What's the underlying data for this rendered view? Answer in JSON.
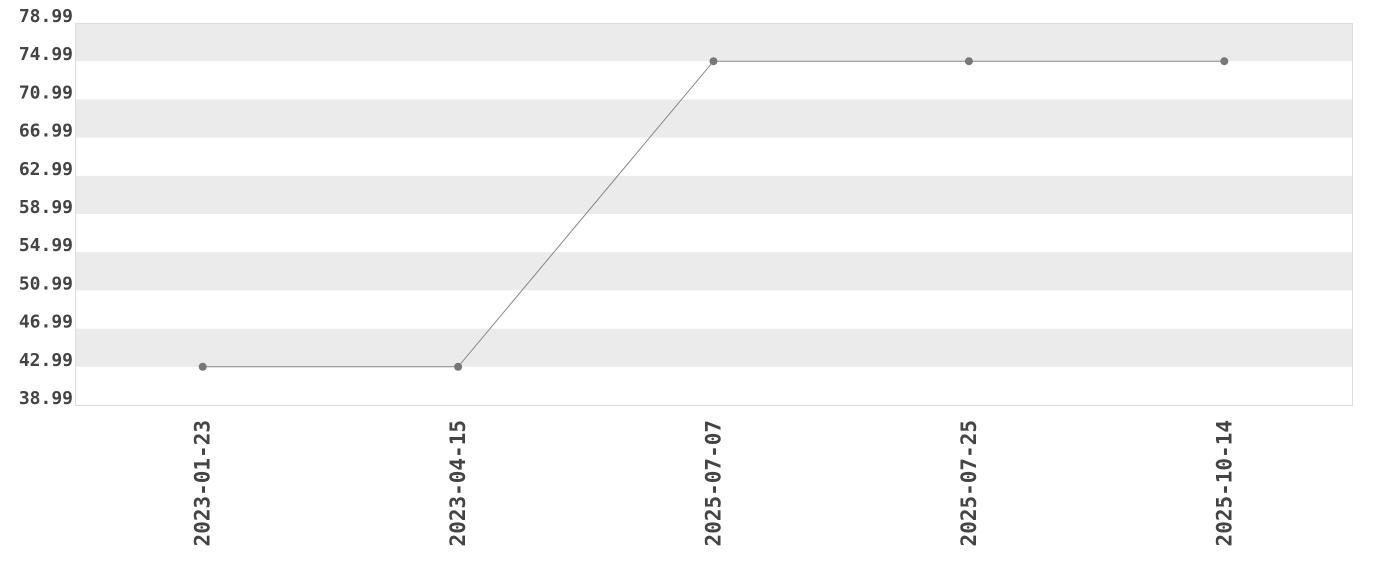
{
  "chart_data": {
    "type": "line",
    "title": "",
    "xlabel": "",
    "ylabel": "",
    "categories": [
      "2023-01-23",
      "2023-04-15",
      "2025-07-07",
      "2025-07-25",
      "2025-10-14"
    ],
    "values": [
      42.99,
      42.99,
      74.99,
      74.99,
      74.99
    ],
    "ylim": [
      38.99,
      78.99
    ],
    "yticks": [
      "38.99",
      "42.99",
      "46.99",
      "50.99",
      "54.99",
      "58.99",
      "62.99",
      "66.99",
      "70.99",
      "74.99",
      "78.99"
    ],
    "grid": "alternating horizontal bands",
    "legend": "none",
    "colors": {
      "line": "#888888",
      "marker": "#777777",
      "band": "#ebebeb",
      "text": "#444444",
      "border": "#dddddd"
    }
  }
}
